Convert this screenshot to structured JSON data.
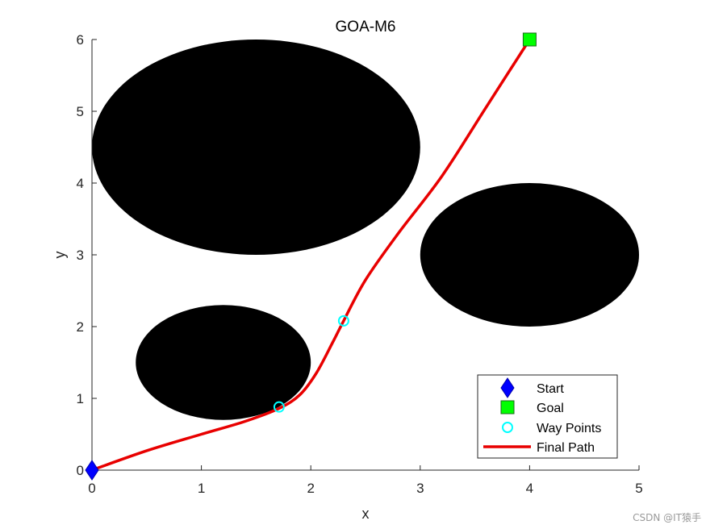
{
  "chart_data": {
    "type": "scatter",
    "title": "GOA-M6",
    "xlabel": "x",
    "ylabel": "y",
    "xlim": [
      0,
      5
    ],
    "ylim": [
      0,
      6
    ],
    "xticks": [
      0,
      1,
      2,
      3,
      4,
      5
    ],
    "yticks": [
      0,
      1,
      2,
      3,
      4,
      5,
      6
    ],
    "grid": false,
    "legend_position": "bottom-right",
    "obstacles": [
      {
        "cx": 1.5,
        "cy": 4.5,
        "rx": 1.5,
        "ry": 1.5
      },
      {
        "cx": 4.0,
        "cy": 3.0,
        "rx": 1.0,
        "ry": 1.0
      },
      {
        "cx": 1.2,
        "cy": 1.5,
        "rx": 0.8,
        "ry": 0.8
      }
    ],
    "series": [
      {
        "name": "Start",
        "marker": "diamond",
        "color": "#0000ff",
        "x": [
          0
        ],
        "y": [
          0
        ]
      },
      {
        "name": "Goal",
        "marker": "square",
        "color": "#00ff00",
        "x": [
          4
        ],
        "y": [
          6
        ]
      },
      {
        "name": "Way Points",
        "marker": "circle",
        "color": "#00ffff",
        "x": [
          1.71,
          2.3
        ],
        "y": [
          0.88,
          2.08
        ]
      },
      {
        "name": "Final Path",
        "marker": "line",
        "color": "#e80000",
        "x": [
          0,
          0.5,
          1.0,
          1.4,
          1.71,
          1.9,
          2.05,
          2.2,
          2.3,
          2.5,
          2.8,
          3.2,
          3.6,
          4.0
        ],
        "y": [
          0,
          0.27,
          0.5,
          0.68,
          0.86,
          1.05,
          1.35,
          1.78,
          2.08,
          2.65,
          3.3,
          4.1,
          5.05,
          6.0
        ]
      }
    ]
  },
  "watermark": "CSDN @IT猿手"
}
